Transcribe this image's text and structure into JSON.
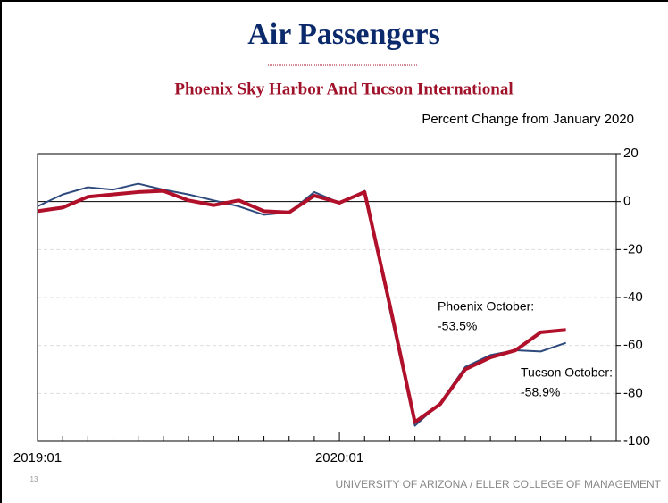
{
  "chart_data": {
    "type": "line",
    "title": "Air Passengers",
    "subtitle": "Phoenix Sky Harbor And Tucson International",
    "y_axis_label": "Percent Change from January 2020",
    "categories": [
      "2019:01",
      null,
      null,
      null,
      null,
      null,
      null,
      null,
      null,
      null,
      null,
      null,
      "2020:01",
      null,
      null,
      null,
      null,
      null,
      null,
      null,
      null,
      null,
      null,
      null
    ],
    "series": [
      {
        "name": "Tucson",
        "color": "#2e4a7d",
        "width": 2,
        "values": [
          -2,
          3,
          6,
          5,
          7.5,
          5,
          3,
          0.5,
          -2,
          -5.5,
          -4.5,
          4,
          -0.5,
          4.5,
          -45,
          -93.5,
          -84,
          -69,
          -64,
          -62,
          -62.5,
          -58.9,
          null,
          null
        ]
      },
      {
        "name": "Phoenix",
        "color": "#b0102a",
        "width": 4,
        "values": [
          -4,
          -2.5,
          2,
          3,
          4,
          4.5,
          0.5,
          -1.5,
          0.5,
          -4,
          -4.5,
          2.5,
          -0.5,
          4,
          -43,
          -92,
          -84.5,
          -70,
          -65,
          -62,
          -54.5,
          -53.5,
          null,
          null
        ]
      }
    ],
    "ylim": [
      -100,
      20
    ],
    "yticks": [
      -100,
      -80,
      -60,
      -40,
      -20,
      0,
      20
    ],
    "grid": true,
    "legend": false,
    "annotations": [
      {
        "lines": [
          "Phoenix October:",
          "-53.5%"
        ]
      },
      {
        "lines": [
          "Tucson October:",
          "-58.9%"
        ]
      }
    ],
    "slide_number": "13",
    "footer": "UNIVERSITY OF ARIZONA / ELLER COLLEGE OF MANAGEMENT"
  }
}
